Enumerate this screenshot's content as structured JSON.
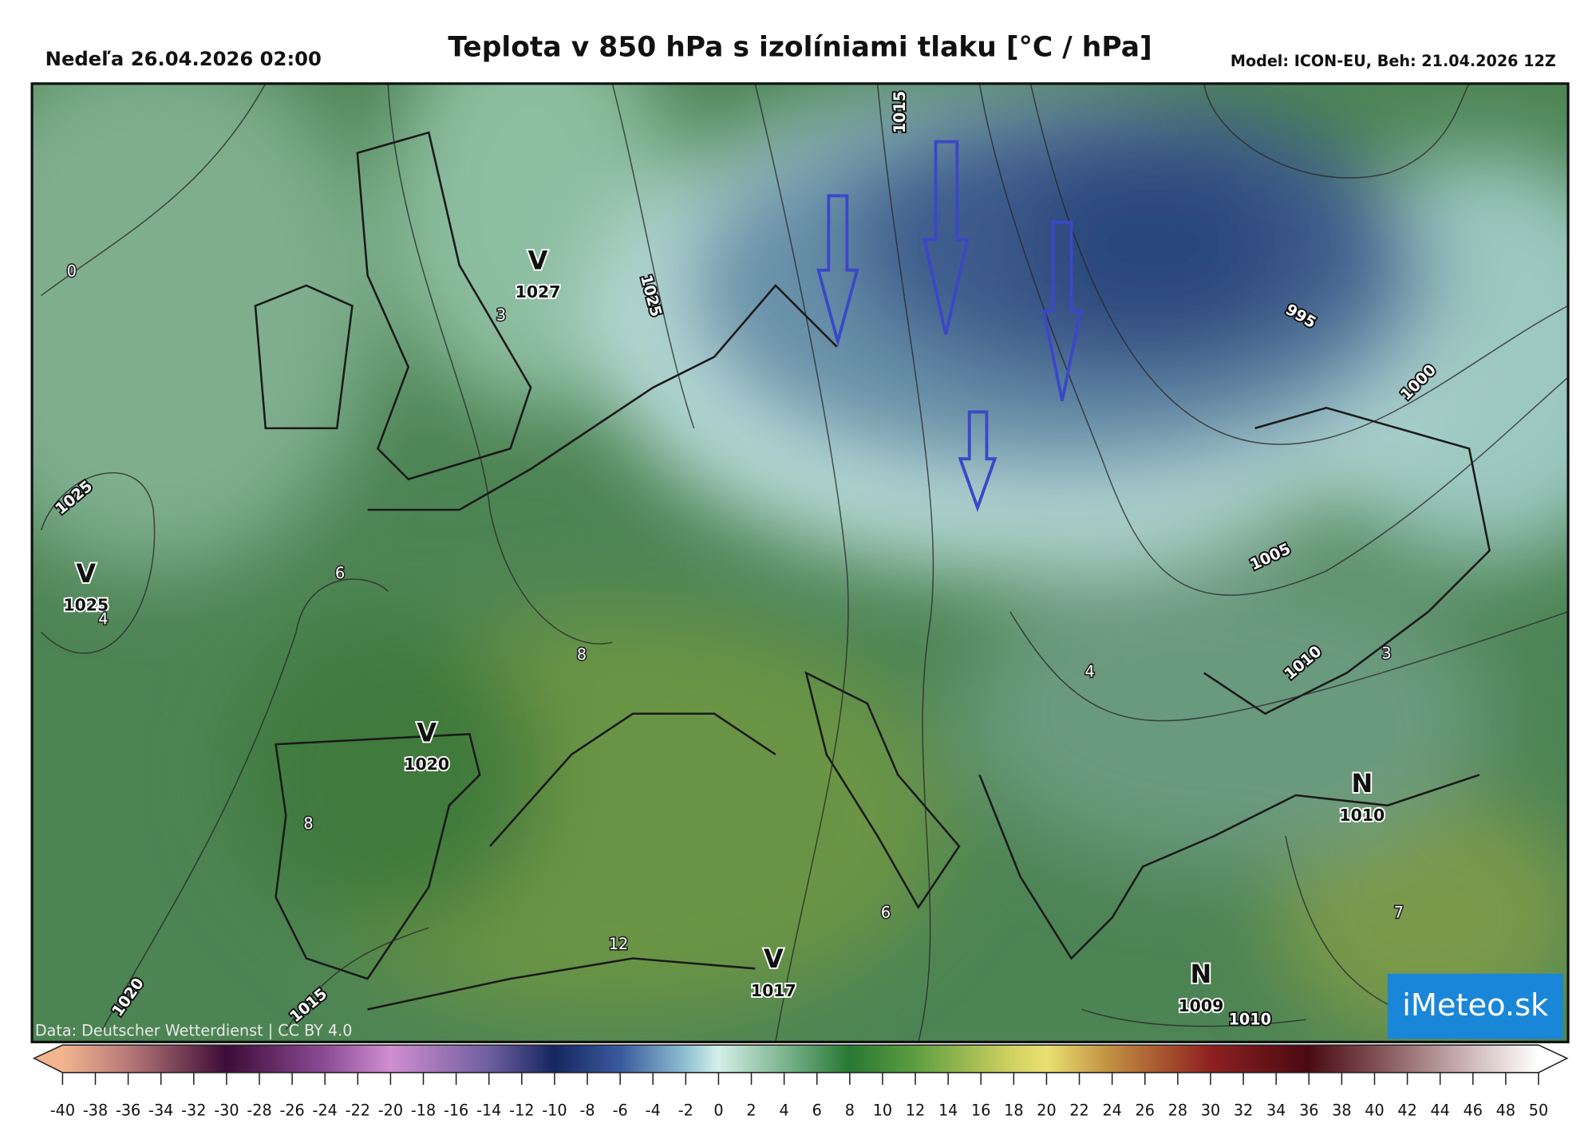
{
  "header": {
    "date": "Nedeľa 26.04.2026 02:00",
    "title": "Teplota v 850 hPa s izolíniami tlaku [°C / hPa]",
    "model": "Model: ICON-EU, Beh: 21.04.2026 12Z"
  },
  "pressure_centers": [
    {
      "type": "V",
      "pressure": 1027
    },
    {
      "type": "V",
      "pressure": 1025
    },
    {
      "type": "V",
      "pressure": 1020
    },
    {
      "type": "V",
      "pressure": 1017
    },
    {
      "type": "N",
      "pressure": 1010
    },
    {
      "type": "N",
      "pressure": 1009
    }
  ],
  "isobar_labels": [
    1015,
    1025,
    995,
    1000,
    1025,
    1005,
    1010,
    1020,
    1015,
    1010
  ],
  "temperature_labels": [
    0,
    3,
    6,
    4,
    8,
    4,
    3,
    8,
    6,
    7,
    12
  ],
  "colorbar": {
    "ticks": [
      -40,
      -38,
      -36,
      -34,
      -32,
      -30,
      -28,
      -26,
      -24,
      -22,
      -20,
      -18,
      -16,
      -14,
      -12,
      -10,
      -8,
      -6,
      -4,
      -2,
      0,
      2,
      4,
      6,
      8,
      10,
      12,
      14,
      16,
      18,
      20,
      22,
      24,
      26,
      28,
      30,
      32,
      34,
      36,
      38,
      40,
      42,
      44,
      46,
      48,
      50
    ]
  },
  "credit": "Data: Deutscher Wetterdienst | CC BY 4.0",
  "logo": "iMeteo.sk"
}
